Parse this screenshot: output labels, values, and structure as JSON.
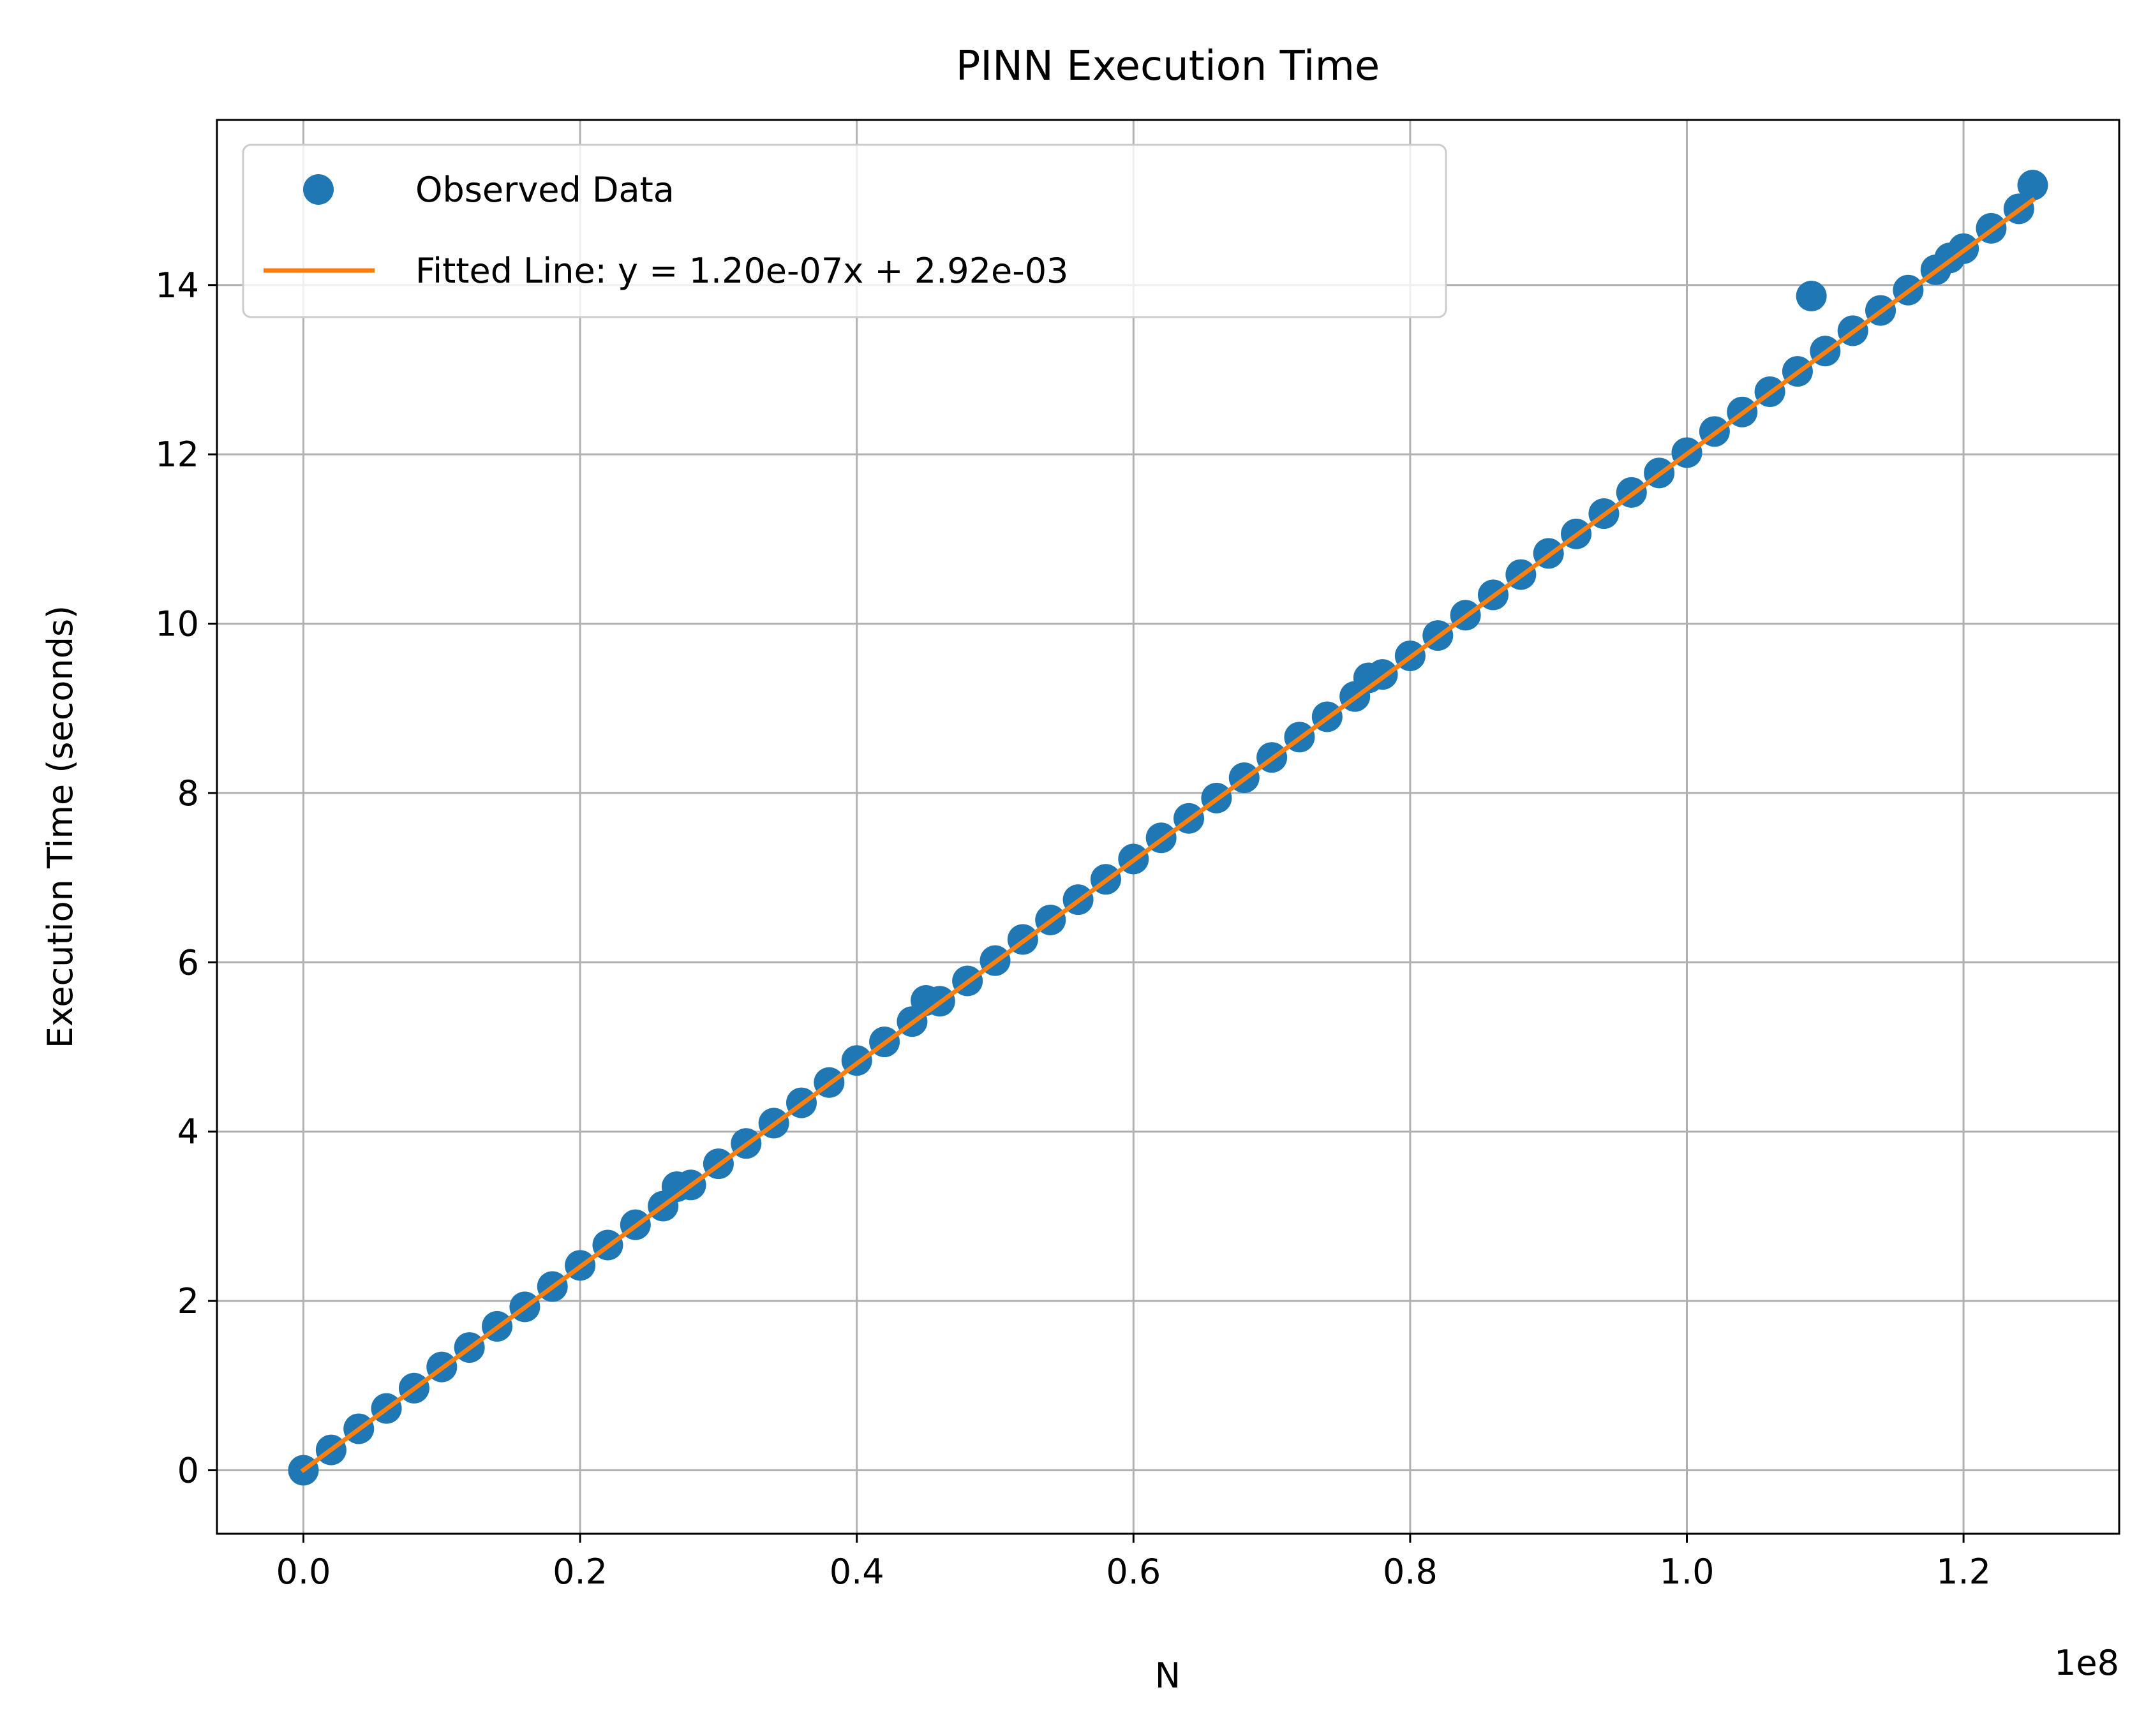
{
  "chart_data": {
    "type": "scatter",
    "title": "PINN Execution Time",
    "xlabel": "N",
    "ylabel": "Execution Time (seconds)",
    "x_offset_label": "1e8",
    "x_scale": 100000000,
    "xlim": [
      -6250000,
      131250000
    ],
    "ylim": [
      -0.75,
      15.95
    ],
    "xticks": [
      0,
      20000000,
      40000000,
      60000000,
      80000000,
      100000000,
      120000000
    ],
    "xtick_labels": [
      "0.0",
      "0.2",
      "0.4",
      "0.6",
      "0.8",
      "1.0",
      "1.2"
    ],
    "yticks": [
      0,
      2,
      4,
      6,
      8,
      10,
      12,
      14
    ],
    "ytick_labels": [
      "0",
      "2",
      "4",
      "6",
      "8",
      "10",
      "12",
      "14"
    ],
    "grid": true,
    "legend_position": "upper-left",
    "colors": {
      "observed": "#1f77b4",
      "fitted": "#ff7f0e",
      "grid": "#b0b0b0"
    },
    "series": [
      {
        "name": "Observed Data",
        "kind": "markers",
        "x": [
          0,
          2000000,
          4000000,
          6000000,
          8000000,
          10000000,
          12000000,
          14000000,
          16000000,
          18000000,
          20000000,
          22000000,
          24000000,
          26000000,
          27000000,
          28000000,
          30000000,
          32000000,
          34000000,
          36000000,
          38000000,
          40000000,
          42000000,
          44000000,
          45000000,
          46000000,
          48000000,
          50000000,
          52000000,
          54000000,
          56000000,
          58000000,
          60000000,
          62000000,
          64000000,
          66000000,
          68000000,
          70000000,
          72000000,
          74000000,
          76000000,
          77000000,
          78000000,
          80000000,
          82000000,
          84000000,
          86000000,
          88000000,
          90000000,
          92000000,
          94000000,
          96000000,
          98000000,
          100000000,
          102000000,
          104000000,
          106000000,
          108000000,
          109000000,
          110000000,
          112000000,
          114000000,
          116000000,
          118000000,
          119000000,
          120000000,
          122000000,
          124000000,
          125000000
        ],
        "y": [
          0.0,
          0.24,
          0.49,
          0.73,
          0.97,
          1.22,
          1.45,
          1.7,
          1.93,
          2.17,
          2.42,
          2.66,
          2.9,
          3.12,
          3.35,
          3.37,
          3.62,
          3.86,
          4.1,
          4.34,
          4.58,
          4.84,
          5.06,
          5.3,
          5.55,
          5.54,
          5.78,
          6.02,
          6.27,
          6.5,
          6.74,
          6.98,
          7.22,
          7.47,
          7.7,
          7.94,
          8.18,
          8.42,
          8.66,
          8.9,
          9.14,
          9.36,
          9.4,
          9.62,
          9.86,
          10.1,
          10.34,
          10.58,
          10.83,
          11.06,
          11.3,
          11.55,
          11.78,
          12.02,
          12.27,
          12.5,
          12.74,
          12.98,
          13.87,
          13.22,
          13.46,
          13.7,
          13.94,
          14.18,
          14.32,
          14.43,
          14.67,
          14.9,
          15.18
        ]
      },
      {
        "name": "Fitted Line: y = 1.20e-07x + 2.92e-03",
        "kind": "line",
        "slope": 1.2e-07,
        "intercept": 0.00292,
        "x": [
          0,
          125000000
        ],
        "y": [
          0.00292,
          15.00292
        ]
      }
    ]
  }
}
